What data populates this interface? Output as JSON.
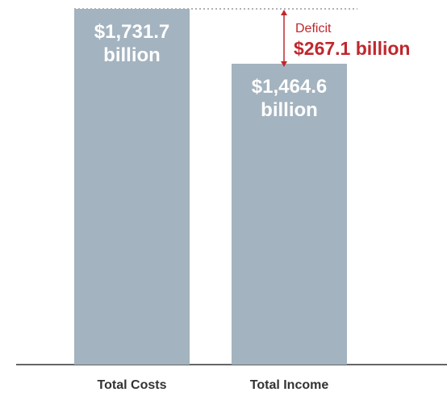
{
  "chart_data": {
    "type": "bar",
    "categories": [
      "Total Costs",
      "Total Income"
    ],
    "values": [
      1731.7,
      1464.6
    ],
    "value_labels": [
      [
        "$1,731.7",
        "billion"
      ],
      [
        "$1,464.6",
        "billion"
      ]
    ],
    "unit": "billion",
    "ylim": [
      0,
      1731.7
    ],
    "grid": false,
    "legend": "none",
    "annotation": {
      "label": "Deficit",
      "value_text": "$267.1 billion",
      "value": 267.1
    }
  },
  "colors": {
    "bar": "#a3b3bf",
    "bar_text": "#ffffff",
    "deficit": "#c0272d",
    "axis": "#333333",
    "dotted_line": "#999999"
  }
}
